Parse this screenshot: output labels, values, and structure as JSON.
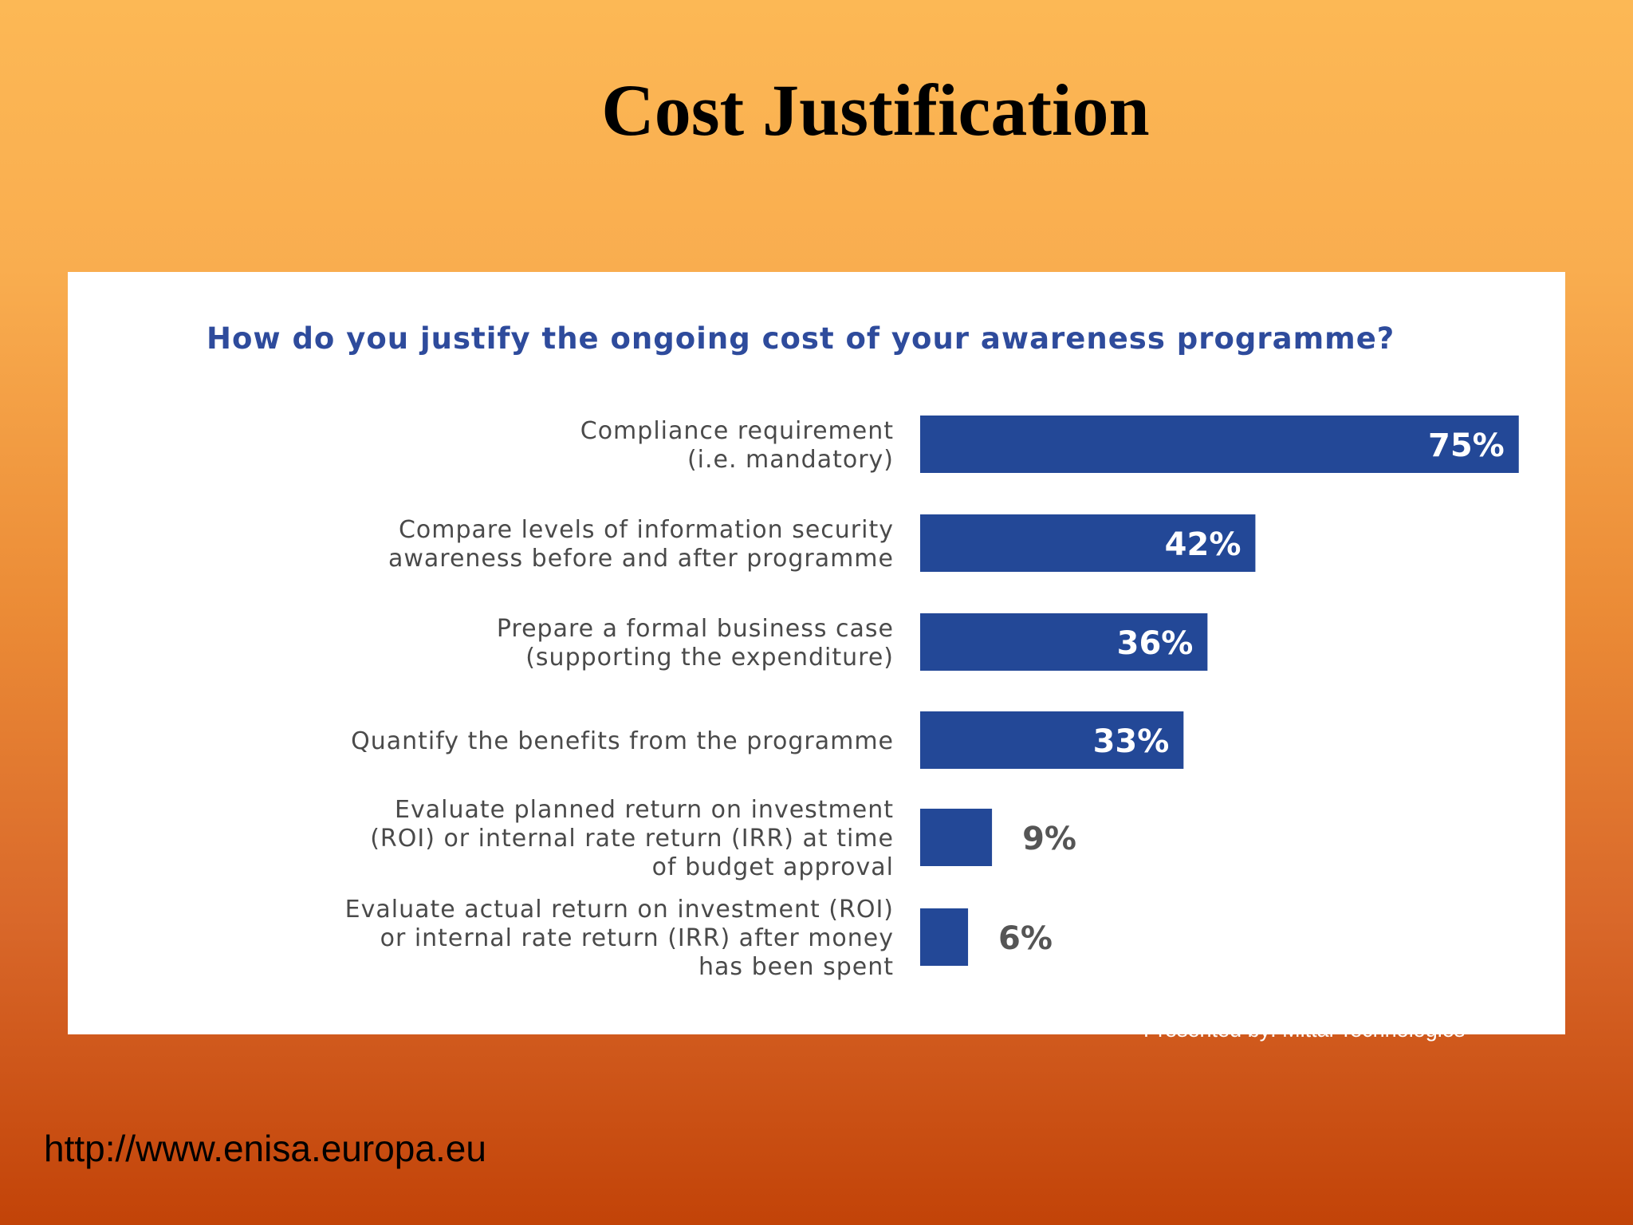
{
  "slide": {
    "title": "Cost Justification",
    "presented_by": "Presented by: Mittal Technologies",
    "source_url": "http://www.enisa.europa.eu"
  },
  "colors": {
    "bar": "#234897",
    "question": "#2e4b9c",
    "label": "#4a4a4a",
    "value_inside": "#ffffff",
    "value_outside": "#555555"
  },
  "chart_data": {
    "type": "bar",
    "orientation": "horizontal",
    "title": "How do you justify the ongoing cost of your awareness programme?",
    "categories": [
      [
        "Compliance requirement",
        "(i.e. mandatory)"
      ],
      [
        "Compare levels of information security",
        "awareness before and after programme"
      ],
      [
        "Prepare a formal business case",
        "(supporting the expenditure)"
      ],
      [
        "Quantify the benefits from the programme"
      ],
      [
        "Evaluate planned return on investment",
        "(ROI) or internal rate return (IRR) at time",
        "of  budget approval"
      ],
      [
        "Evaluate actual return on investment (ROI)",
        "or internal rate return (IRR) after money",
        "has been spent"
      ]
    ],
    "values": [
      75,
      42,
      36,
      33,
      9,
      6
    ],
    "value_labels": [
      "75%",
      "42%",
      "36%",
      "33%",
      "9%",
      "6%"
    ],
    "xlim": [
      0,
      100
    ],
    "grid": false,
    "legend": "none"
  }
}
